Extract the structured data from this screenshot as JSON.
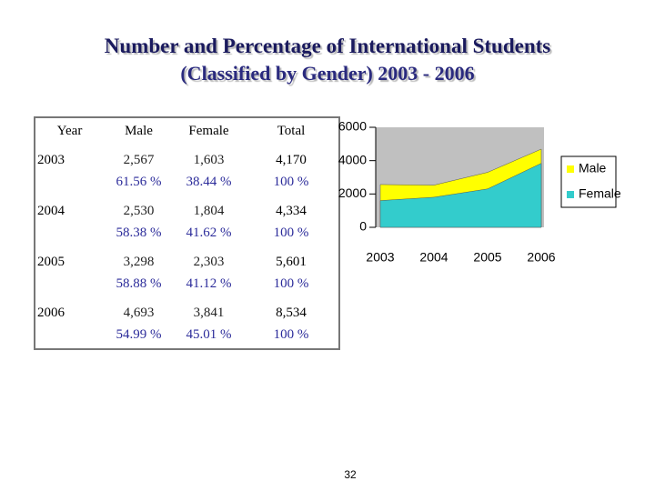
{
  "header": {
    "title": "Number and Percentage of International Students",
    "subtitle": "(Classified by Gender) 2003 - 2006"
  },
  "table": {
    "header": [
      "Year",
      "Male",
      "Female",
      "Total"
    ],
    "rows": [
      [
        "2003",
        "2,567",
        "61.56 %",
        "1,603",
        "38.44 %",
        "4,170",
        "100 %"
      ],
      [
        "2004",
        "2,530",
        "58.38 %",
        "1,804",
        "41.62 %",
        "4,334",
        "100 %"
      ],
      [
        "2005",
        "3,298",
        "58.88 %",
        "2,303",
        "41.12 %",
        "5,601",
        "100 %"
      ],
      [
        "2006",
        "4,693",
        "54.99 %",
        "3,841",
        "45.01 %",
        "8,534",
        "100 %"
      ]
    ]
  },
  "chart_data": {
    "type": "area",
    "categories": [
      "2003",
      "2004",
      "2005",
      "2006"
    ],
    "series": [
      {
        "name": "Male",
        "color": "#ffff00",
        "values": [
          2567,
          2530,
          3298,
          4693
        ]
      },
      {
        "name": "Female",
        "color": "#33cccc",
        "values": [
          1603,
          1804,
          2303,
          3841
        ]
      }
    ],
    "ylim": [
      0,
      6000
    ],
    "yticks": [
      0,
      2000,
      4000,
      6000
    ],
    "plot_background": "#c0c0c0"
  },
  "page_number": "32"
}
